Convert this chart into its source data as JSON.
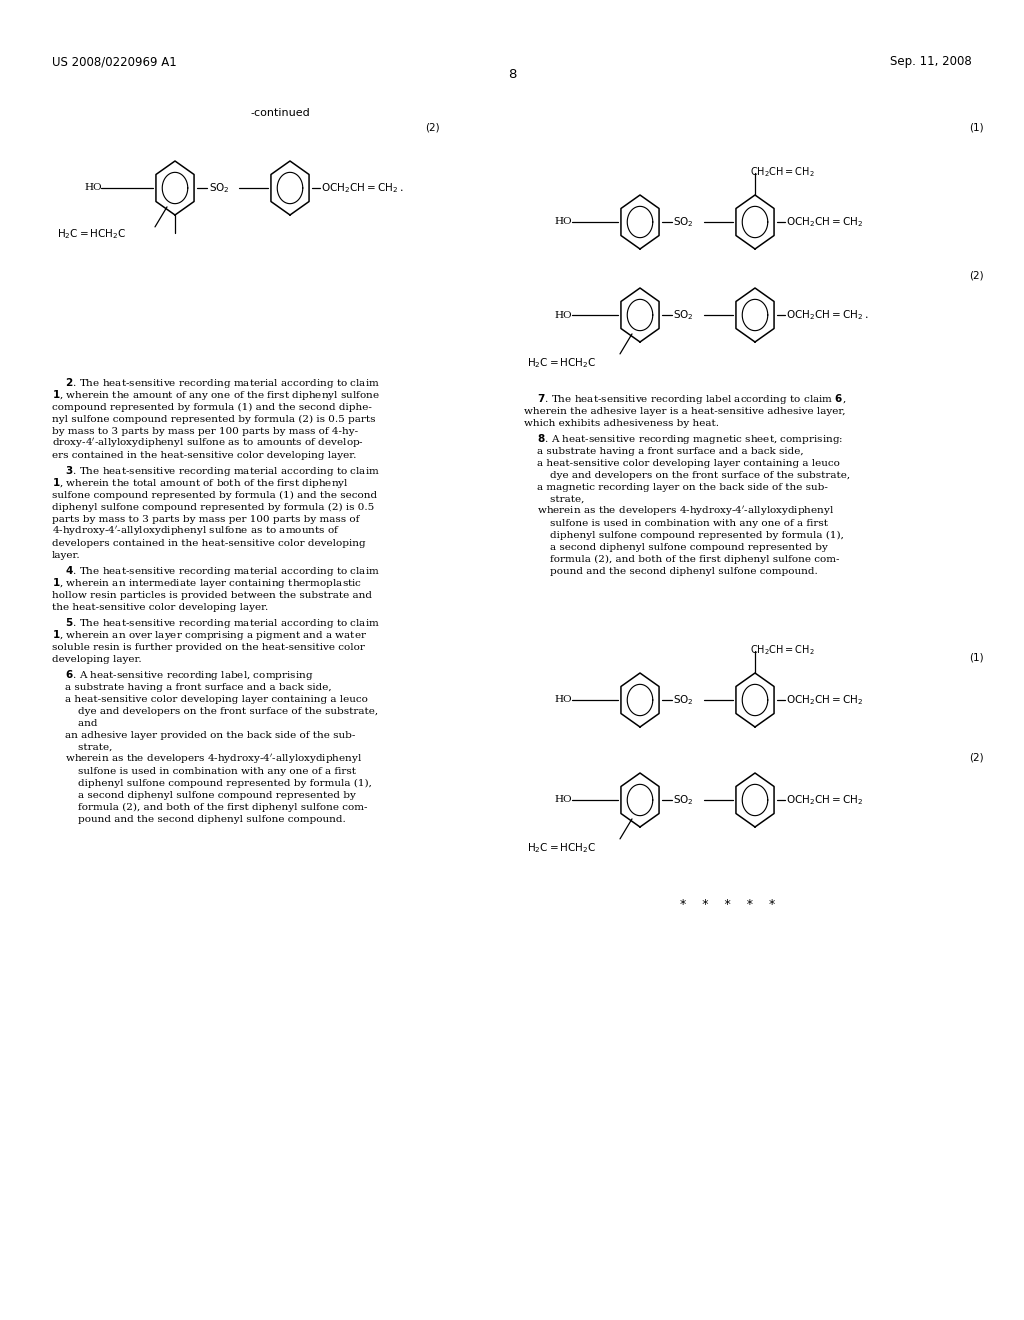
{
  "background_color": "#ffffff",
  "header_left": "US 2008/0220969 A1",
  "header_right": "Sep. 11, 2008",
  "page_number": "8",
  "continued_label": "-continued",
  "stars": "*    *    *    *    *",
  "font_size_header": 8.5,
  "font_size_body": 7.0,
  "font_size_chem": 7.0
}
